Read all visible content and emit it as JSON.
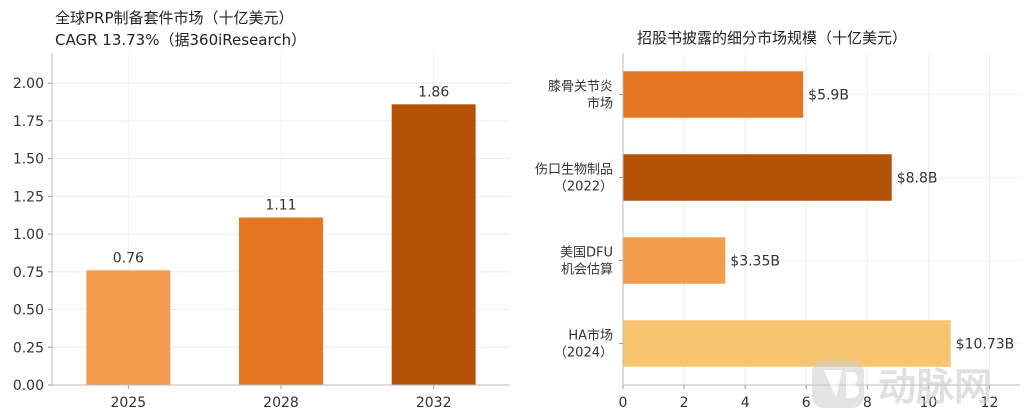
{
  "chart_data": [
    {
      "type": "bar",
      "title": "全球PRP制备套件市场（十亿美元）",
      "subtitle": "CAGR 13.73%（据360iResearch）",
      "categories": [
        "2025",
        "2028",
        "2032"
      ],
      "values": [
        0.76,
        1.11,
        1.86
      ],
      "data_labels": [
        "0.76",
        "1.11",
        "1.86"
      ],
      "ylim": [
        0,
        2.2
      ],
      "yticks": [
        0,
        0.25,
        0.5,
        0.75,
        1.0,
        1.25,
        1.5,
        1.75,
        2.0
      ],
      "ytick_labels": [
        "0.00",
        "0.25",
        "0.50",
        "0.75",
        "1.00",
        "1.25",
        "1.50",
        "1.75",
        "2.00"
      ],
      "colors": [
        "#f39c4e",
        "#e67621",
        "#b55208"
      ],
      "grid": true
    },
    {
      "type": "bar",
      "orientation": "horizontal",
      "title": "招股书披露的细分市场规模（十亿美元）",
      "categories": [
        [
          "膝骨关节炎",
          "市场"
        ],
        [
          "伤口生物制品",
          "（2022）"
        ],
        [
          "美国DFU",
          "机会估算"
        ],
        [
          "HA市场",
          "（2024）"
        ]
      ],
      "values": [
        5.9,
        8.8,
        3.35,
        10.73
      ],
      "data_labels": [
        "$5.9B",
        "$8.8B",
        "$3.35B",
        "$10.73B"
      ],
      "xlim": [
        0,
        13
      ],
      "xticks": [
        0,
        2,
        4,
        6,
        8,
        10,
        12
      ],
      "xtick_labels": [
        "0",
        "2",
        "4",
        "6",
        "8",
        "10",
        "12"
      ],
      "colors": [
        "#e67621",
        "#b55208",
        "#f39c4e",
        "#f7c470"
      ],
      "grid": true
    }
  ],
  "watermark": {
    "logo_icon": "vb-logo-icon",
    "text": "动脉网"
  }
}
